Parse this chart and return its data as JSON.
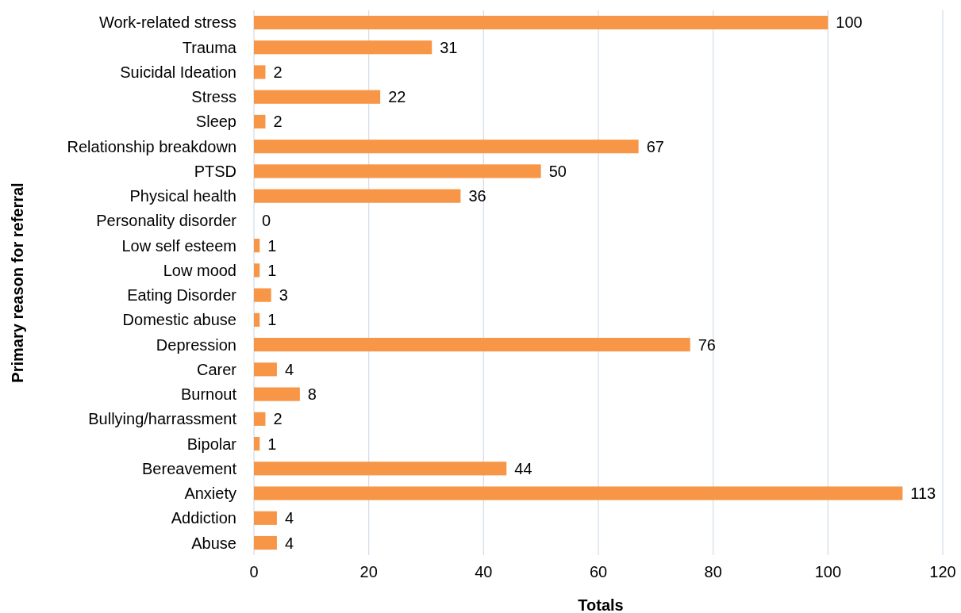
{
  "chart_data": {
    "type": "bar",
    "orientation": "horizontal",
    "xlabel": "Totals",
    "ylabel": "Primary reason for referral",
    "categories": [
      "Work-related stress",
      "Trauma",
      "Suicidal Ideation",
      "Stress",
      "Sleep",
      "Relationship breakdown",
      "PTSD",
      "Physical health",
      "Personality disorder",
      "Low self esteem",
      "Low mood",
      "Eating Disorder",
      "Domestic abuse",
      "Depression",
      "Carer",
      "Burnout",
      "Bullying/harrassment",
      "Bipolar",
      "Bereavement",
      "Anxiety",
      "Addiction",
      "Abuse"
    ],
    "values": [
      100,
      31,
      2,
      22,
      2,
      67,
      50,
      36,
      0,
      1,
      1,
      3,
      1,
      76,
      4,
      8,
      2,
      1,
      44,
      113,
      4,
      4
    ],
    "color": "#f79646",
    "xlim": [
      0,
      120
    ],
    "xticks": [
      0,
      20,
      40,
      60,
      80,
      100,
      120
    ],
    "grid": "x",
    "data_labels": true
  }
}
